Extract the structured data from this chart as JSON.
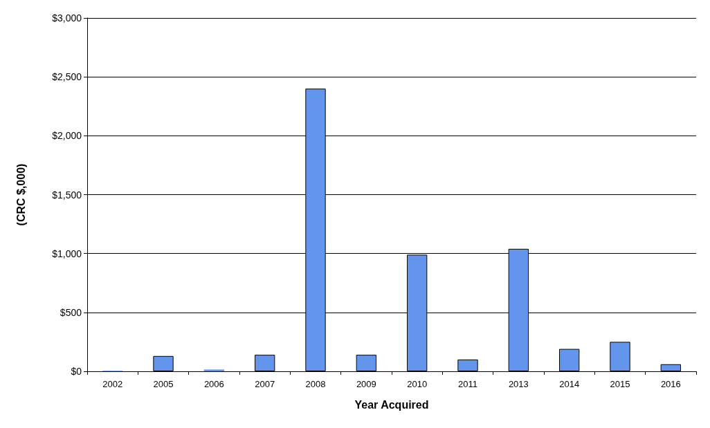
{
  "chart_data": {
    "type": "bar",
    "xlabel": "Year Acquired",
    "ylabel": "(CRC $,000)",
    "categories": [
      "2002",
      "2005",
      "2006",
      "2007",
      "2008",
      "2009",
      "2010",
      "2011",
      "2013",
      "2014",
      "2015",
      "2016"
    ],
    "values": [
      5,
      130,
      15,
      140,
      2400,
      140,
      990,
      100,
      1040,
      190,
      250,
      60
    ],
    "color": "#6495ed",
    "ylim": [
      0,
      3000
    ],
    "yticks": [
      {
        "value": 0,
        "label": "$0"
      },
      {
        "value": 500,
        "label": "$500"
      },
      {
        "value": 1000,
        "label": "$1,000"
      },
      {
        "value": 1500,
        "label": "$1,500"
      },
      {
        "value": 2000,
        "label": "$2,000"
      },
      {
        "value": 2500,
        "label": "$2,500"
      },
      {
        "value": 3000,
        "label": "$3,000"
      }
    ],
    "grid": "y"
  }
}
